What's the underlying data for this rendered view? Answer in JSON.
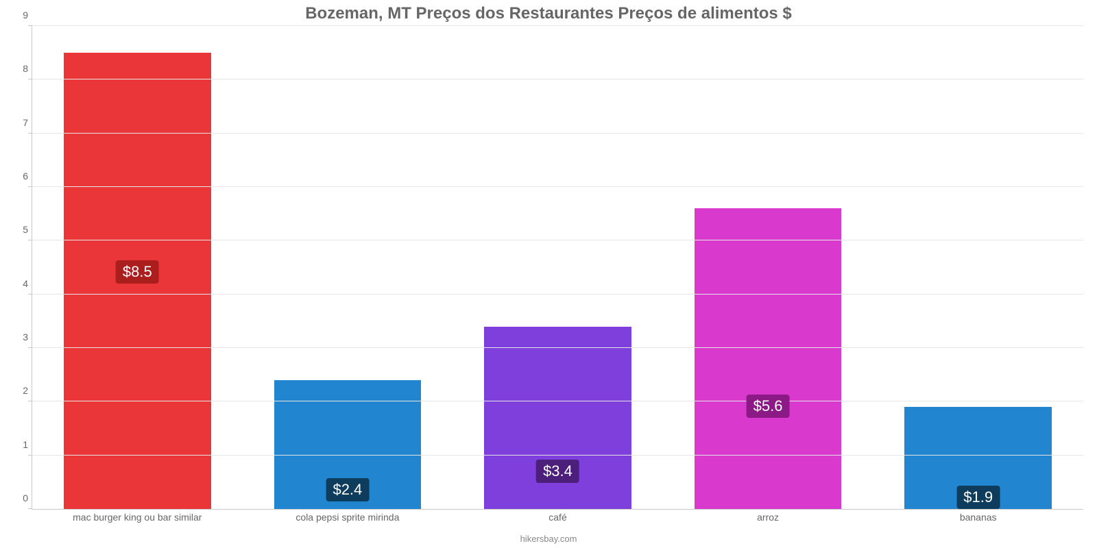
{
  "chart": {
    "type": "bar",
    "title": "Bozeman, MT Preços dos Restaurantes Preços de alimentos $",
    "title_color": "#666666",
    "title_fontsize": 24,
    "background_color": "#ffffff",
    "grid_color": "#e6e6e6",
    "axis_color": "#c9c9c9",
    "tick_label_color": "#666666",
    "tick_label_fontsize": 14,
    "bar_label_fontsize": 22,
    "bar_label_text_color": "#ffffff",
    "ylim": [
      0,
      9
    ],
    "yticks": [
      0,
      1,
      2,
      3,
      4,
      5,
      6,
      7,
      8,
      9
    ],
    "bar_width_pct": 14,
    "bar_gap_pct": 20,
    "label_position_pct": 55,
    "categories": [
      "mac burger king ou bar similar",
      "cola pepsi sprite mirinda",
      "café",
      "arroz",
      "bananas"
    ],
    "values": [
      8.5,
      2.4,
      3.4,
      5.6,
      1.9
    ],
    "display_values": [
      "$8.5",
      "$2.4",
      "$3.4",
      "$5.6",
      "$1.9"
    ],
    "bar_colors": [
      "#eb3639",
      "#2185d0",
      "#7f3fdc",
      "#d93acd",
      "#2185d0"
    ],
    "label_bg_colors": [
      "#aa1e1e",
      "#0d3c5c",
      "#4b1f7a",
      "#8b1a87",
      "#0d3c5c"
    ],
    "source_text": "hikersbay.com",
    "source_color": "#888888",
    "source_fontsize": 13
  }
}
